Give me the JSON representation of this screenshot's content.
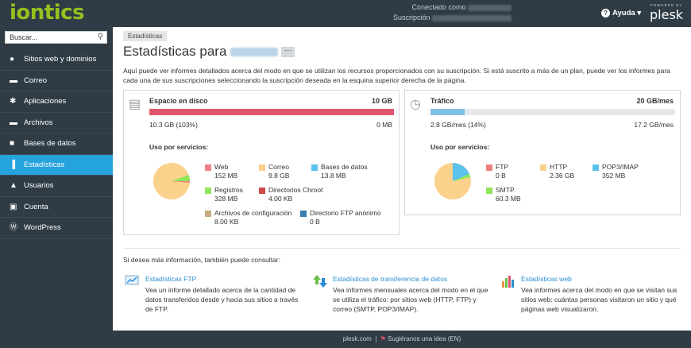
{
  "header": {
    "logo": "iontics",
    "connected_label": "Conectado como",
    "subscription_label": "Suscripción",
    "help": "Ayuda",
    "powered": "POWERED BY",
    "plesk": "plesk"
  },
  "sidebar": {
    "search_placeholder": "Buscar...",
    "items": [
      {
        "label": "Sitios web y dominios",
        "icon": "globe-icon"
      },
      {
        "label": "Correo",
        "icon": "mail-icon"
      },
      {
        "label": "Aplicaciones",
        "icon": "gear-icon"
      },
      {
        "label": "Archivos",
        "icon": "folder-icon"
      },
      {
        "label": "Bases de datos",
        "icon": "database-icon"
      },
      {
        "label": "Estadísticas",
        "icon": "bar-chart-icon",
        "active": true
      },
      {
        "label": "Usuarios",
        "icon": "user-icon"
      },
      {
        "label": "Cuenta",
        "icon": "account-icon"
      },
      {
        "label": "WordPress",
        "icon": "wordpress-icon"
      }
    ]
  },
  "main": {
    "breadcrumb": "Estadísticas",
    "title": "Estadísticas para",
    "intro": "Aquí puede ver informes detallados acerca del modo en que se utilizan los recursos proporcionados con su suscripción. Si está suscrito a más de un plan, puede ver los informes para cada una de sus suscripciones seleccionando la suscripción deseada en la esquina superior derecha de la página.",
    "disk": {
      "title": "Espacio en disco",
      "limit": "10 GB",
      "used": "10.3 GB (103%)",
      "free": "0 MB",
      "usage_percent": 103,
      "bar_color": "#e0556f",
      "usage_title": "Uso por servicios:",
      "legend": [
        {
          "name": "Web",
          "value": "152 MB",
          "color": "#f08080"
        },
        {
          "name": "Correo",
          "value": "9.8 GB",
          "color": "#fbd28c"
        },
        {
          "name": "Bases de datos",
          "value": "13.8 MB",
          "color": "#5bc2ec"
        },
        {
          "name": "Registros",
          "value": "328 MB",
          "color": "#8ee65a"
        },
        {
          "name": "Directorios Chroot",
          "value": "4.00 KB",
          "color": "#d24a4a"
        },
        {
          "name": "Archivos de configuración",
          "value": "8.00 KB",
          "color": "#c9a982"
        },
        {
          "name": "Directorio FTP anónimo",
          "value": "0 B",
          "color": "#3a7fae"
        }
      ]
    },
    "traffic": {
      "title": "Tráfico",
      "limit": "20 GB/mes",
      "used": "2.8 GB/mes (14%)",
      "limit_right": "17.2 GB/mes",
      "usage_percent": 14,
      "bar_color": "#7fc3e6",
      "usage_title": "Uso por servicios:",
      "legend": [
        {
          "name": "FTP",
          "value": "0 B",
          "color": "#f08080"
        },
        {
          "name": "HTTP",
          "value": "2.36 GB",
          "color": "#fbd28c"
        },
        {
          "name": "POP3/IMAP",
          "value": "352 MB",
          "color": "#5bc2ec"
        },
        {
          "name": "SMTP",
          "value": "60.3 MB",
          "color": "#8ee65a"
        }
      ]
    },
    "more_info": "Si desea más información, también puede consultar:",
    "links": [
      {
        "title": "Estadísticas FTP",
        "desc": "Vea un informe detallado acerca de la cantidad de datos transferidos desde y hacia sus sitios a través de FTP.",
        "icon": "ftp-stats-icon"
      },
      {
        "title": "Estadísticas de transferencia de datos",
        "desc": "Vea informes mensuales acerca del modo en el que se utiliza el tráfico: por sitios web (HTTP, FTP) y correo (SMTP, POP3/IMAP).",
        "icon": "transfer-arrows-icon"
      },
      {
        "title": "Estadísticas web",
        "desc": "Vea informes acerca del modo en que se visitan sus sitios web: cuántas personas visitaron un sitio y qué páginas web visualizaron.",
        "icon": "web-stats-icon"
      }
    ]
  },
  "footer": {
    "site": "plesk.com",
    "suggest": "Sugiéranos una idea (EN)"
  }
}
